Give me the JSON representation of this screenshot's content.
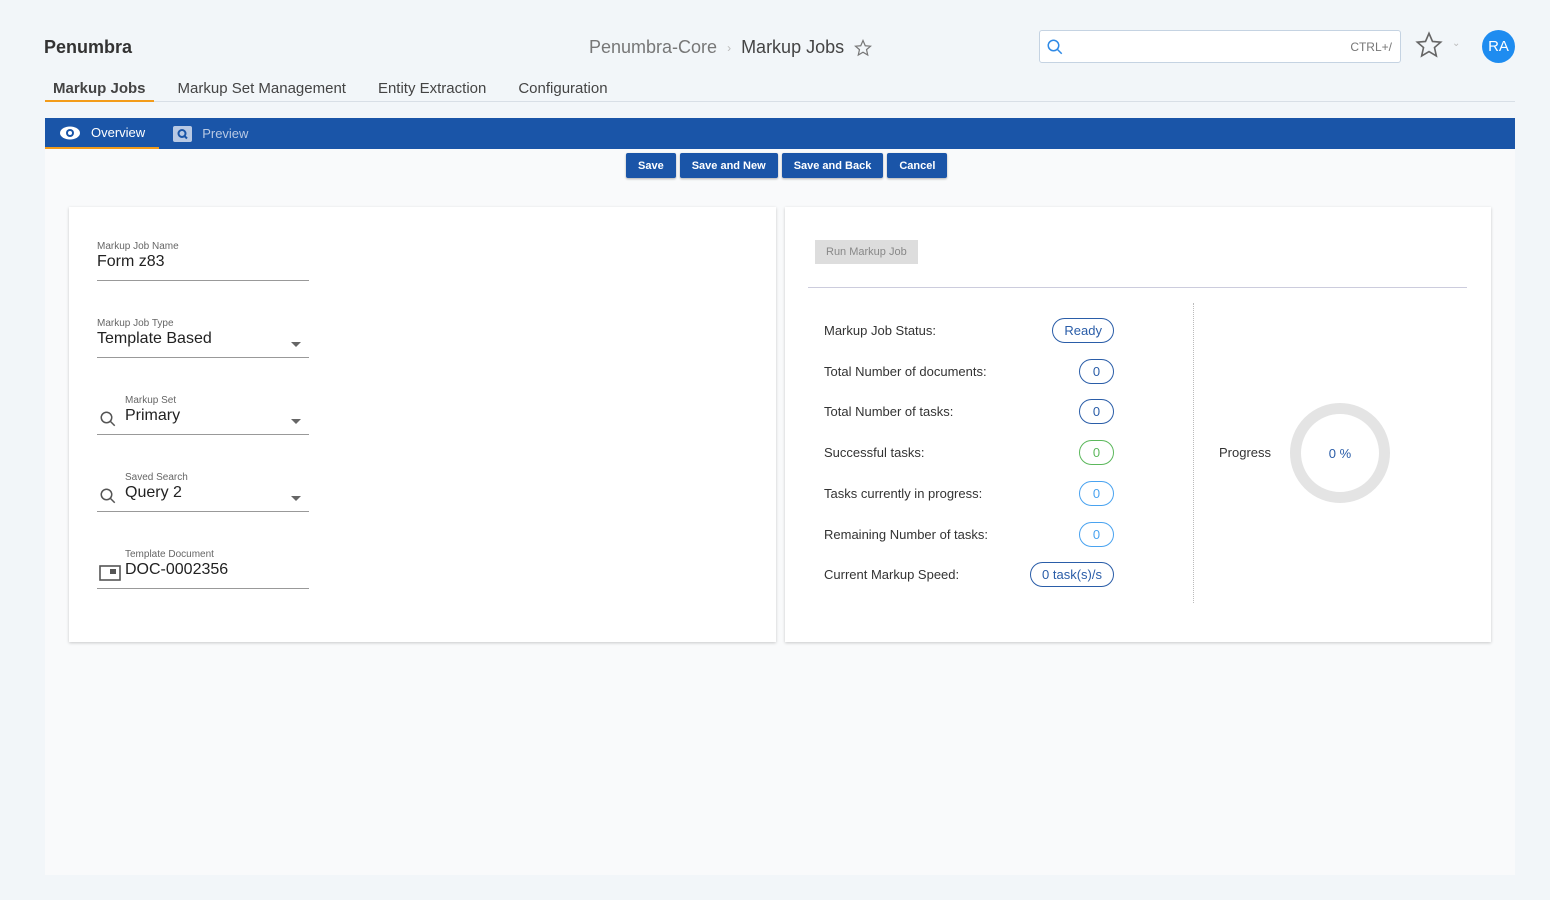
{
  "app": {
    "brand": "Penumbra"
  },
  "breadcrumb": {
    "parent": "Penumbra-Core",
    "current": "Markup Jobs"
  },
  "search": {
    "placeholder": "",
    "shortcut": "CTRL+/"
  },
  "user": {
    "initials": "RA"
  },
  "tabs": [
    {
      "label": "Markup Jobs",
      "active": true
    },
    {
      "label": "Markup Set Management"
    },
    {
      "label": "Entity Extraction"
    },
    {
      "label": "Configuration"
    }
  ],
  "subtabs": [
    {
      "label": "Overview",
      "icon": "eye-icon",
      "active": true
    },
    {
      "label": "Preview",
      "icon": "preview-search-icon"
    }
  ],
  "toolbar": {
    "save": "Save",
    "save_new": "Save and New",
    "save_back": "Save and Back",
    "cancel": "Cancel"
  },
  "form": {
    "name": {
      "label": "Markup Job Name",
      "value": "Form z83"
    },
    "type": {
      "label": "Markup Job Type",
      "value": "Template Based"
    },
    "set": {
      "label": "Markup Set",
      "value": "Primary"
    },
    "search": {
      "label": "Saved Search",
      "value": "Query 2"
    },
    "doc": {
      "label": "Template Document",
      "value": "DOC-0002356"
    }
  },
  "status": {
    "run_label": "Run Markup Job",
    "rows": [
      {
        "label": "Markup Job Status:",
        "value": "Ready",
        "color": "#2a5da8"
      },
      {
        "label": "Total Number of documents:",
        "value": "0",
        "color": "#2a5da8"
      },
      {
        "label": "Total Number of tasks:",
        "value": "0",
        "color": "#2a5da8"
      },
      {
        "label": "Successful tasks:",
        "value": "0",
        "color": "#5cb85c"
      },
      {
        "label": "Tasks currently in progress:",
        "value": "0",
        "color": "#4aa3f0"
      },
      {
        "label": "Remaining Number of tasks:",
        "value": "0",
        "color": "#4aa3f0"
      },
      {
        "label": "Current Markup Speed:",
        "value": "0 task(s)/s",
        "color": "#2a5da8"
      }
    ],
    "progress_label": "Progress",
    "progress_value": "0 %",
    "progress_percent": 0
  }
}
